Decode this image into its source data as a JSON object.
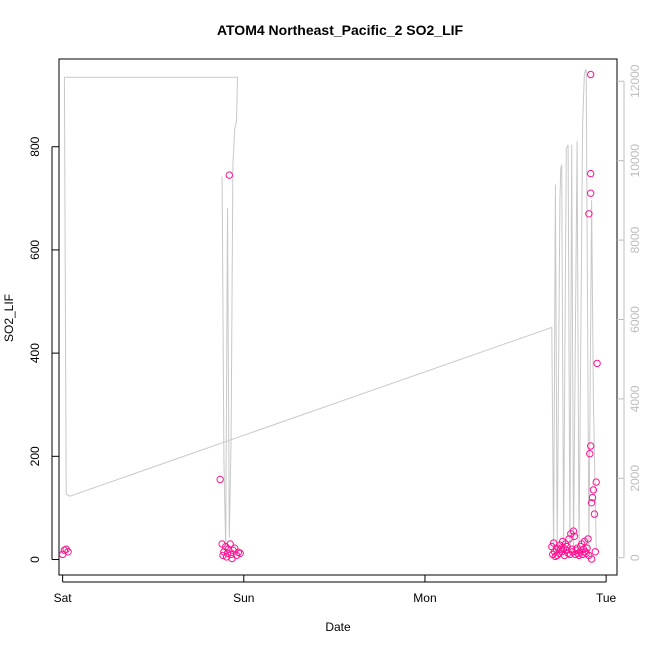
{
  "chart_data": {
    "type": "scatter",
    "title": "ATOM4 Northeast_Pacific_2 SO2_LIF",
    "xlabel": "Date",
    "ylabel": "SO2_LIF",
    "x_ticks": [
      "Sat",
      "Sun",
      "Mon",
      "Tue"
    ],
    "x_range_days": [
      -0.02,
      3.06
    ],
    "y_left": {
      "range": [
        -30,
        970
      ],
      "ticks": [
        0,
        200,
        400,
        600,
        800
      ]
    },
    "y_right": {
      "range": [
        -435,
        12560
      ],
      "ticks": [
        0,
        2000,
        4000,
        6000,
        8000,
        10000,
        12000
      ]
    },
    "colors": {
      "points": "#ff1493",
      "line": "#c8c8c8",
      "right_axis": "#bdbdbd"
    },
    "series": [
      {
        "type": "line",
        "axis": "right",
        "points": [
          [
            0.01,
            12100
          ],
          [
            0.02,
            1600
          ],
          [
            0.04,
            1550
          ],
          [
            2.7,
            5800
          ],
          [
            2.71,
            100
          ],
          [
            2.72,
            9400
          ],
          [
            2.73,
            200
          ],
          [
            2.745,
            9000
          ],
          [
            2.75,
            9800
          ],
          [
            2.755,
            9900
          ],
          [
            2.765,
            300
          ],
          [
            2.78,
            10300
          ],
          [
            2.79,
            10400
          ],
          [
            2.8,
            100
          ],
          [
            2.81,
            10400
          ],
          [
            2.82,
            200
          ],
          [
            2.84,
            10500
          ],
          [
            2.85,
            100
          ],
          [
            2.87,
            10900
          ],
          [
            2.88,
            12200
          ],
          [
            2.89,
            12300
          ],
          [
            2.905,
            100
          ],
          [
            2.92,
            9000
          ],
          [
            2.93,
            4000
          ],
          [
            2.945,
            200
          ]
        ]
      },
      {
        "type": "line",
        "axis": "right",
        "points": [
          [
            0.88,
            9600
          ],
          [
            0.89,
            2500
          ],
          [
            0.9,
            200
          ],
          [
            0.91,
            8800
          ],
          [
            0.92,
            500
          ],
          [
            0.93,
            3000
          ],
          [
            0.94,
            9900
          ],
          [
            0.95,
            10800
          ],
          [
            0.96,
            11000
          ],
          [
            0.965,
            12100
          ],
          [
            0.01,
            12100
          ]
        ]
      },
      {
        "type": "scatter",
        "axis": "left",
        "points": [
          [
            0.0,
            10
          ],
          [
            0.01,
            18
          ],
          [
            0.02,
            20
          ],
          [
            0.03,
            15
          ],
          [
            0.87,
            155
          ],
          [
            0.88,
            30
          ],
          [
            0.885,
            8
          ],
          [
            0.89,
            15
          ],
          [
            0.9,
            25
          ],
          [
            0.905,
            5
          ],
          [
            0.91,
            12
          ],
          [
            0.915,
            20
          ],
          [
            0.92,
            745
          ],
          [
            0.925,
            30
          ],
          [
            0.93,
            10
          ],
          [
            0.935,
            2
          ],
          [
            0.94,
            18
          ],
          [
            0.95,
            22
          ],
          [
            0.96,
            8
          ],
          [
            0.97,
            14
          ],
          [
            0.98,
            12
          ],
          [
            2.7,
            25
          ],
          [
            2.705,
            10
          ],
          [
            2.71,
            32
          ],
          [
            2.715,
            15
          ],
          [
            2.72,
            6
          ],
          [
            2.725,
            20
          ],
          [
            2.73,
            8
          ],
          [
            2.735,
            22
          ],
          [
            2.74,
            12
          ],
          [
            2.745,
            28
          ],
          [
            2.75,
            20
          ],
          [
            2.755,
            15
          ],
          [
            2.76,
            35
          ],
          [
            2.765,
            22
          ],
          [
            2.77,
            8
          ],
          [
            2.775,
            30
          ],
          [
            2.78,
            18
          ],
          [
            2.785,
            25
          ],
          [
            2.79,
            12
          ],
          [
            2.795,
            40
          ],
          [
            2.8,
            10
          ],
          [
            2.805,
            50
          ],
          [
            2.81,
            20
          ],
          [
            2.815,
            15
          ],
          [
            2.82,
            55
          ],
          [
            2.825,
            45
          ],
          [
            2.83,
            10
          ],
          [
            2.835,
            18
          ],
          [
            2.84,
            22
          ],
          [
            2.845,
            12
          ],
          [
            2.85,
            8
          ],
          [
            2.855,
            15
          ],
          [
            2.86,
            25
          ],
          [
            2.865,
            30
          ],
          [
            2.87,
            10
          ],
          [
            2.875,
            20
          ],
          [
            2.88,
            35
          ],
          [
            2.885,
            15
          ],
          [
            2.89,
            12
          ],
          [
            2.895,
            22
          ],
          [
            2.9,
            40
          ],
          [
            2.905,
            8
          ],
          [
            2.91,
            205
          ],
          [
            2.915,
            220
          ],
          [
            2.92,
            1
          ],
          [
            2.92,
            110
          ],
          [
            2.925,
            120
          ],
          [
            2.93,
            135
          ],
          [
            2.935,
            88
          ],
          [
            2.94,
            15
          ],
          [
            2.945,
            150
          ],
          [
            2.95,
            380
          ],
          [
            2.905,
            670
          ],
          [
            2.915,
            710
          ],
          [
            2.915,
            748
          ],
          [
            2.915,
            940
          ]
        ]
      }
    ]
  }
}
